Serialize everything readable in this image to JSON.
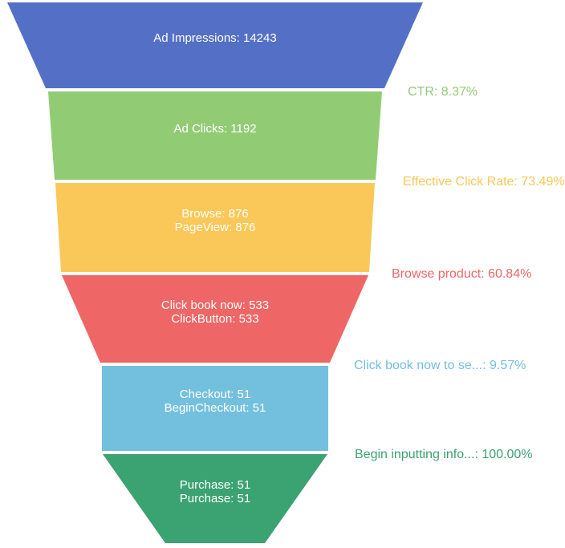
{
  "chart_data": {
    "type": "funnel",
    "orientation": "descending",
    "background": "#ffffff",
    "inside_label_color": "#ffffff",
    "palette": [
      "#5470c6",
      "#91cc75",
      "#fac858",
      "#ee6666",
      "#73c0de",
      "#3ba272"
    ],
    "stages": [
      {
        "name": "Ad Impressions",
        "event": "Ad Impressions",
        "value": 14243,
        "color": "#5470c6",
        "lines": [
          "Ad Impressions: 14243"
        ]
      },
      {
        "name": "Ad Clicks",
        "event": "Ad Clicks",
        "value": 1192,
        "color": "#91cc75",
        "lines": [
          "Ad Clicks: 1192"
        ]
      },
      {
        "name": "Browse",
        "event": "PageView",
        "value": 876,
        "color": "#fac858",
        "lines": [
          "Browse: 876",
          "PageView: 876"
        ]
      },
      {
        "name": "Click book now",
        "event": "ClickButton",
        "value": 533,
        "color": "#ee6666",
        "lines": [
          "Click book now: 533",
          "ClickButton: 533"
        ]
      },
      {
        "name": "Checkout",
        "event": "BeginCheckout",
        "value": 51,
        "color": "#73c0de",
        "lines": [
          "Checkout: 51",
          "BeginCheckout: 51"
        ]
      },
      {
        "name": "Purchase",
        "event": "Purchase",
        "value": 51,
        "color": "#3ba272",
        "lines": [
          "Purchase: 51",
          "Purchase: 51"
        ]
      }
    ],
    "conversions": [
      {
        "text": "CTR: 8.37%",
        "value": 8.37,
        "color": "#91cc75"
      },
      {
        "text": "Effective Click Rate: 73.49%",
        "value": 73.49,
        "color": "#fac858",
        "clipped_at_right_edge": true
      },
      {
        "text": "Browse product: 60.84%",
        "value": 60.84,
        "color": "#ee6666"
      },
      {
        "text": "Click book now to se...: 9.57%",
        "value": 9.57,
        "color": "#73c0de"
      },
      {
        "text": "Begin inputting info...: 100.00%",
        "value": 100.0,
        "color": "#3ba272"
      }
    ]
  }
}
